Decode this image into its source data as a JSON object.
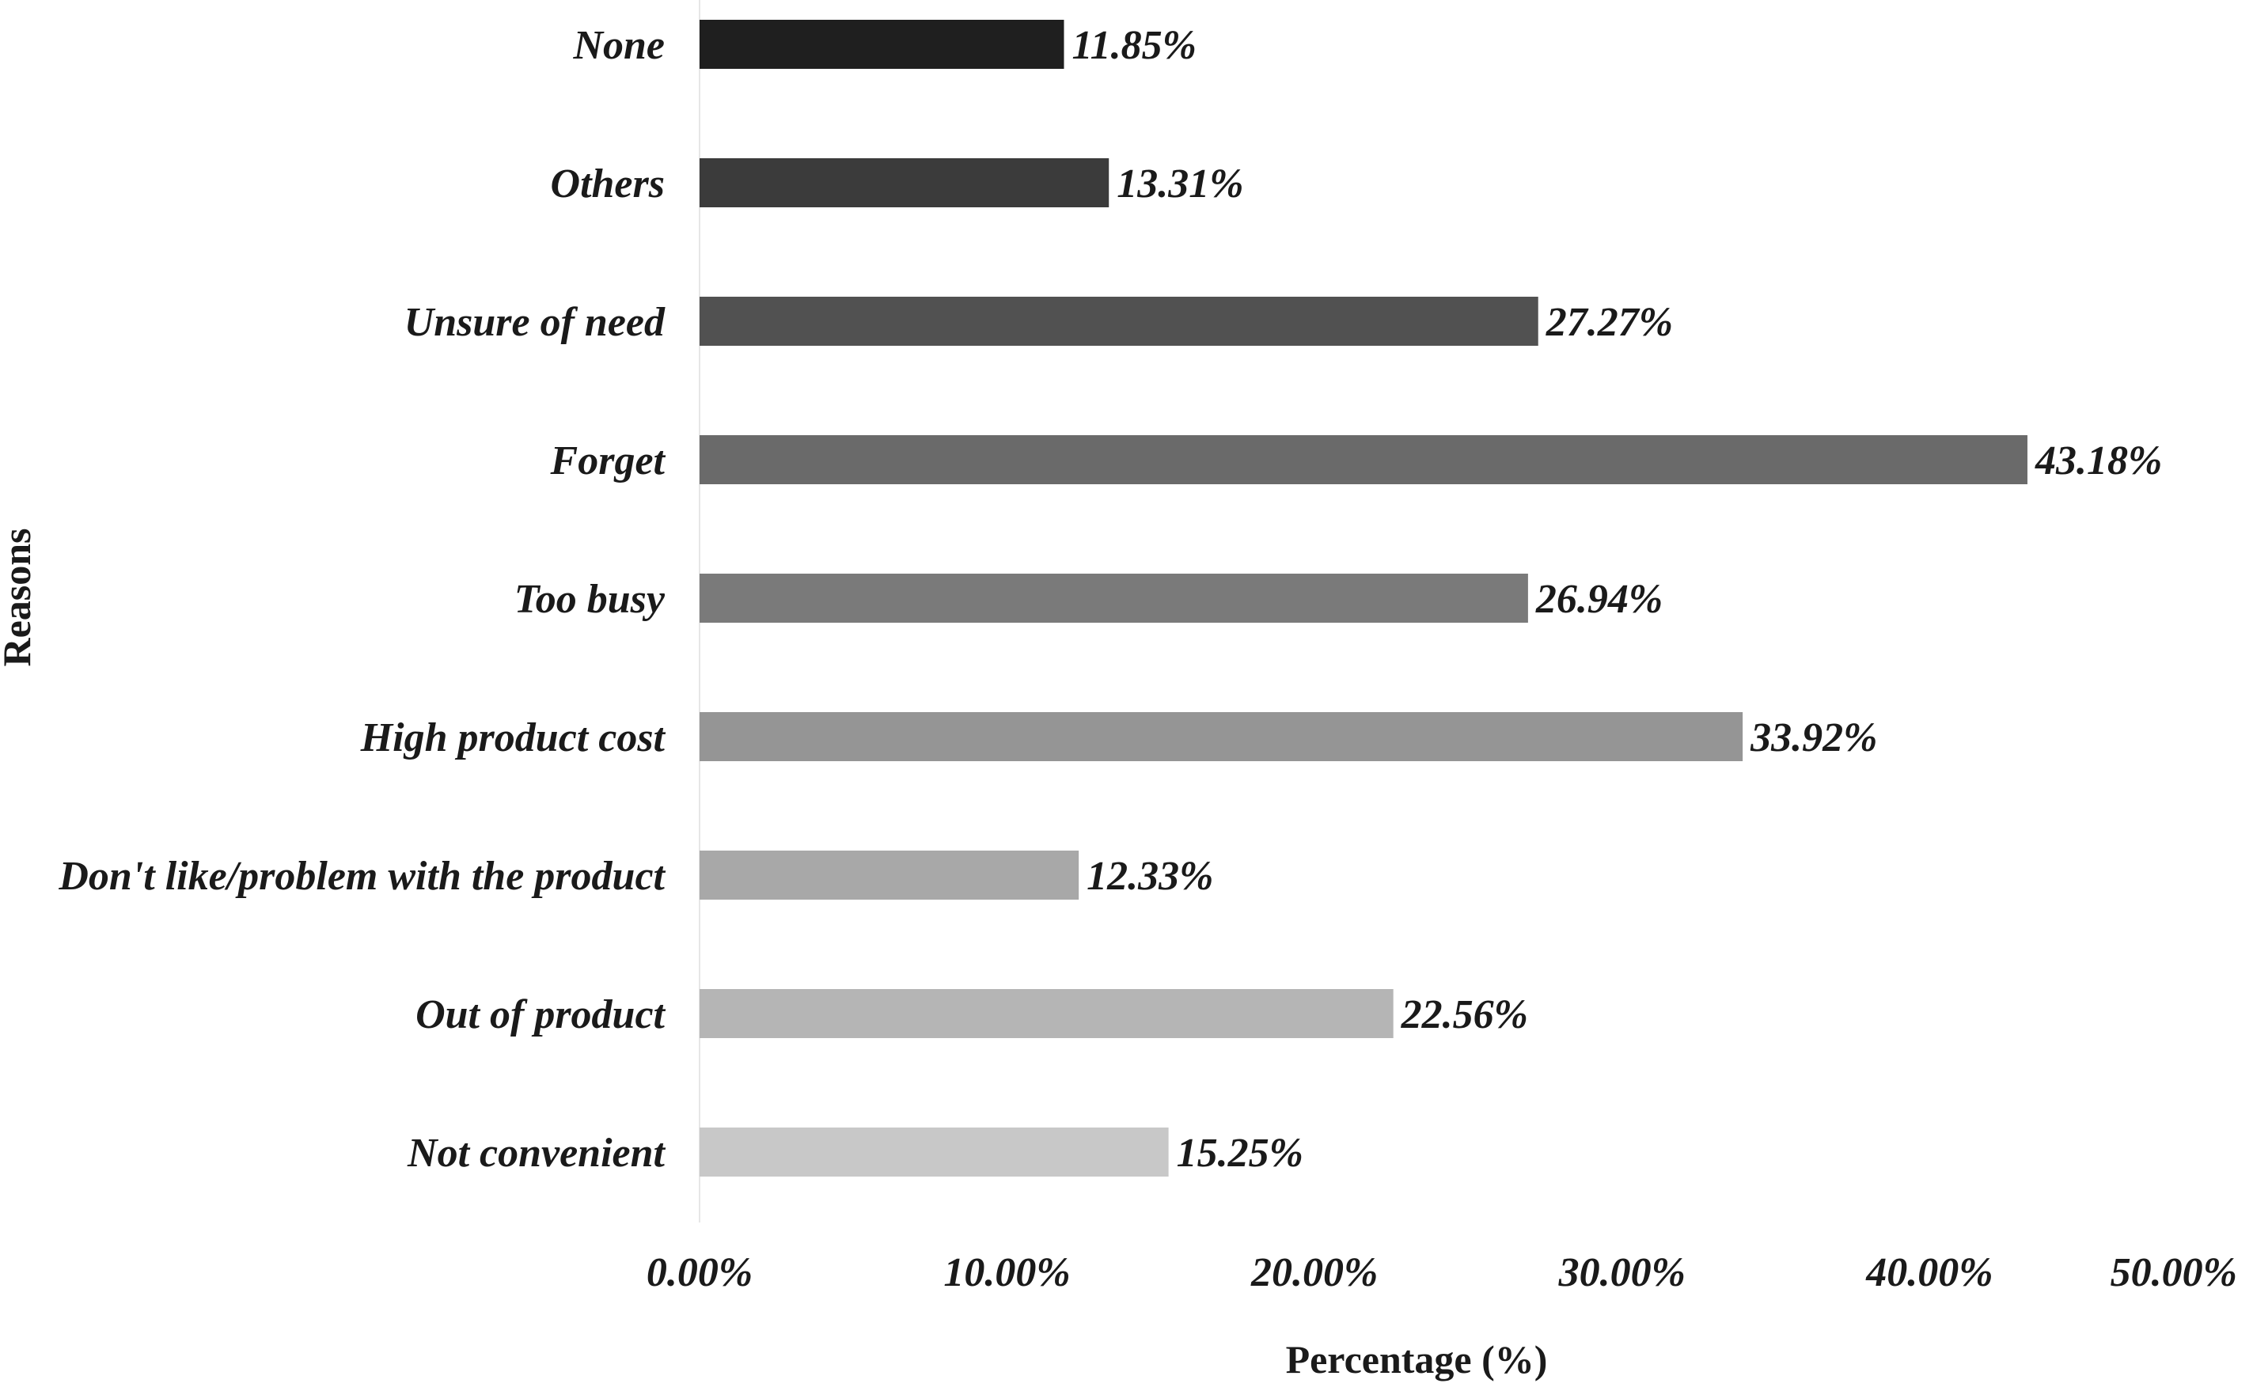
{
  "chart_data": {
    "type": "bar",
    "orientation": "horizontal",
    "categories": [
      "None",
      "Others",
      "Unsure of need",
      "Forget",
      "Too busy",
      "High product cost",
      "Don't like/problem with the product",
      "Out of product",
      "Not convenient"
    ],
    "values": [
      11.85,
      13.31,
      27.27,
      43.18,
      26.94,
      33.92,
      12.33,
      22.56,
      15.25
    ],
    "value_labels": [
      "11.85%",
      "13.31%",
      "27.27%",
      "43.18%",
      "26.94%",
      "33.92%",
      "12.33%",
      "22.56%",
      "15.25%"
    ],
    "bar_colors": [
      "#1f1f1f",
      "#3b3b3b",
      "#515151",
      "#6a6a6a",
      "#7a7a7a",
      "#959595",
      "#a8a8a8",
      "#b5b5b5",
      "#c8c8c8"
    ],
    "x_ticks": [
      0,
      10,
      20,
      30,
      40,
      50
    ],
    "x_tick_labels": [
      "0.00%",
      "10.00%",
      "20.00%",
      "30.00%",
      "40.00%",
      "50.00%"
    ],
    "xlim": [
      0,
      50
    ],
    "xlabel": "Percentage (%)",
    "ylabel": "Reasons",
    "title": "",
    "grid": false,
    "legend": false
  }
}
